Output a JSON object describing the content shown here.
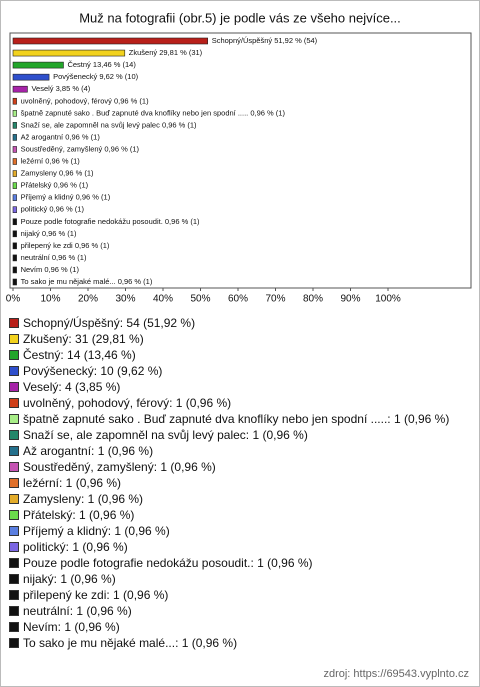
{
  "chart_data": {
    "type": "bar",
    "title": "Muž na fotografii (obr.5) je podle vás ze všeho nejvíce...",
    "categories": [
      "Schopný/Úspěšný",
      "Zkušený",
      "Čestný",
      "Povýšenecký",
      "Veselý",
      "uvolněný, pohodový, férový",
      "špatně zapnuté sako . Buď zapnuté dva knoflíky  nebo jen spodní .....",
      "Snaží se, ale zapomněl na svůj levý palec",
      "Až arogantní",
      "Soustředěný, zamyšlený",
      "ležérní",
      "Zamysleny",
      "Přátelský",
      "Příjemý a klidný",
      "politický",
      "Pouze podle fotografie nedokážu posoudit.",
      "nijaký",
      "přilepený ke zdi",
      "neutrální",
      "Nevím",
      "To sako je mu nějaké malé..."
    ],
    "values": [
      51.92,
      29.81,
      13.46,
      9.62,
      3.85,
      0.96,
      0.96,
      0.96,
      0.96,
      0.96,
      0.96,
      0.96,
      0.96,
      0.96,
      0.96,
      0.96,
      0.96,
      0.96,
      0.96,
      0.96,
      0.96
    ],
    "value_labels": [
      "51,92 % (54)",
      "29,81 % (31)",
      "13,46 % (14)",
      "9,62 % (10)",
      "3,85 % (4)",
      "0,96 % (1)",
      "0,96 % (1)",
      "0,96 % (1)",
      "0,96 % (1)",
      "0,96 % (1)",
      "0,96 % (1)",
      "0,96 % (1)",
      "0,96 % (1)",
      "0,96 % (1)",
      "0,96 % (1)",
      "0,96 % (1)",
      "0,96 % (1)",
      "0,96 % (1)",
      "0,96 % (1)",
      "0,96 % (1)",
      "0,96 % (1)"
    ],
    "legend_labels": [
      "Schopný/Úspěšný: 54 (51,92 %)",
      "Zkušený: 31 (29,81 %)",
      "Čestný: 14 (13,46 %)",
      "Povýšenecký: 10 (9,62 %)",
      "Veselý: 4 (3,85 %)",
      "uvolněný, pohodový, férový: 1 (0,96 %)",
      "špatně zapnuté sako . Buď zapnuté dva knoflíky  nebo jen spodní .....: 1 (0,96 %)",
      "Snaží se, ale zapomněl na svůj levý palec: 1 (0,96 %)",
      "Až arogantní: 1 (0,96 %)",
      "Soustředěný, zamyšlený: 1 (0,96 %)",
      "ležérní: 1 (0,96 %)",
      "Zamysleny: 1 (0,96 %)",
      "Přátelský: 1 (0,96 %)",
      "Příjemý a klidný: 1 (0,96 %)",
      "politický: 1 (0,96 %)",
      "Pouze podle fotografie nedokážu posoudit.: 1 (0,96 %)",
      "nijaký: 1 (0,96 %)",
      "přilepený ke zdi: 1 (0,96 %)",
      "neutrální: 1 (0,96 %)",
      "Nevím: 1 (0,96 %)",
      "To sako je mu nějaké malé...: 1 (0,96 %)"
    ],
    "colors": [
      "#b8201a",
      "#f2d21e",
      "#22a52a",
      "#2e4fcc",
      "#a623a8",
      "#d0401a",
      "#a8ee88",
      "#23876a",
      "#24708c",
      "#c453b2",
      "#e0702a",
      "#e3ac2a",
      "#6bdc4c",
      "#5a7ee0",
      "#7b66e2",
      "#111111",
      "#111111",
      "#111111",
      "#111111",
      "#111111",
      "#111111"
    ],
    "xlim": [
      0,
      100
    ],
    "xticks": [
      {
        "value": 0,
        "label": "0%"
      },
      {
        "value": 10,
        "label": "10%"
      },
      {
        "value": 20,
        "label": "20%"
      },
      {
        "value": 30,
        "label": "30%"
      },
      {
        "value": 40,
        "label": "40%"
      },
      {
        "value": 50,
        "label": "50%"
      },
      {
        "value": 60,
        "label": "60%"
      },
      {
        "value": 70,
        "label": "70%"
      },
      {
        "value": 80,
        "label": "80%"
      },
      {
        "value": 90,
        "label": "90%"
      },
      {
        "value": 100,
        "label": "100%"
      }
    ],
    "source": "zdroj: https://69543.vyplnto.cz"
  }
}
